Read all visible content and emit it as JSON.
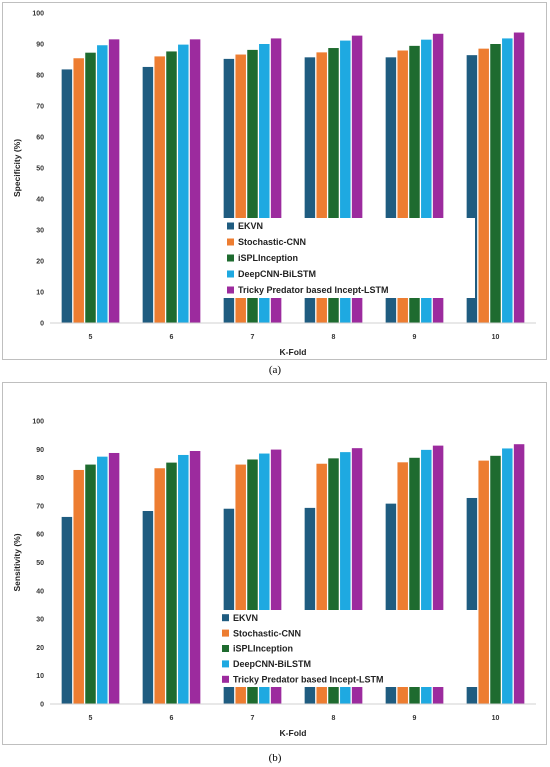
{
  "captions": {
    "a": "(a)",
    "b": "(b)"
  },
  "chart_data": [
    {
      "type": "bar",
      "panel": "a",
      "xlabel": "K-Fold",
      "ylabel": "Specificity (%)",
      "ylim": [
        0,
        100
      ],
      "yticks": [
        0,
        10,
        20,
        30,
        40,
        50,
        60,
        70,
        80,
        90,
        100
      ],
      "categories": [
        "5",
        "6",
        "7",
        "8",
        "9",
        "10"
      ],
      "grid": false,
      "legend_position": "center-bottom",
      "series": [
        {
          "name": "EKVN",
          "color": "#1f5c80",
          "values": [
            81.8,
            82.6,
            85.2,
            85.7,
            85.7,
            86.4
          ]
        },
        {
          "name": "Stochastic-CNN",
          "color": "#ed7d31",
          "values": [
            85.4,
            86.0,
            86.6,
            87.3,
            87.9,
            88.5
          ]
        },
        {
          "name": "iSPLInception",
          "color": "#1e6b2f",
          "values": [
            87.2,
            87.6,
            88.1,
            88.7,
            89.4,
            90.0
          ]
        },
        {
          "name": "DeepCNN-BiLSTM",
          "color": "#1ea9e1",
          "values": [
            89.6,
            89.8,
            90.0,
            91.1,
            91.4,
            91.8
          ]
        },
        {
          "name": "Tricky Predator based Incept-LSTM",
          "color": "#9c2b9e",
          "values": [
            91.5,
            91.5,
            91.8,
            92.7,
            93.3,
            93.7
          ]
        }
      ]
    },
    {
      "type": "bar",
      "panel": "b",
      "xlabel": "K-Fold",
      "ylabel": "Sensitivity (%)",
      "ylim": [
        0,
        100
      ],
      "yticks": [
        0,
        10,
        20,
        30,
        40,
        50,
        60,
        70,
        80,
        90,
        100
      ],
      "categories": [
        "5",
        "6",
        "7",
        "8",
        "9",
        "10"
      ],
      "grid": false,
      "legend_position": "center-bottom",
      "series": [
        {
          "name": "EKVN",
          "color": "#1f5c80",
          "values": [
            66.1,
            68.2,
            69.0,
            69.3,
            70.8,
            72.8
          ]
        },
        {
          "name": "Stochastic-CNN",
          "color": "#ed7d31",
          "values": [
            82.7,
            83.3,
            84.6,
            84.9,
            85.4,
            86.0
          ]
        },
        {
          "name": "iSPLInception",
          "color": "#1e6b2f",
          "values": [
            84.6,
            85.3,
            86.4,
            86.8,
            87.0,
            87.7
          ]
        },
        {
          "name": "DeepCNN-BiLSTM",
          "color": "#1ea9e1",
          "values": [
            87.4,
            88.0,
            88.5,
            89.0,
            89.8,
            90.3
          ]
        },
        {
          "name": "Tricky Predator based Incept-LSTM",
          "color": "#9c2b9e",
          "values": [
            88.7,
            89.4,
            89.9,
            90.4,
            91.3,
            91.8
          ]
        }
      ]
    }
  ]
}
